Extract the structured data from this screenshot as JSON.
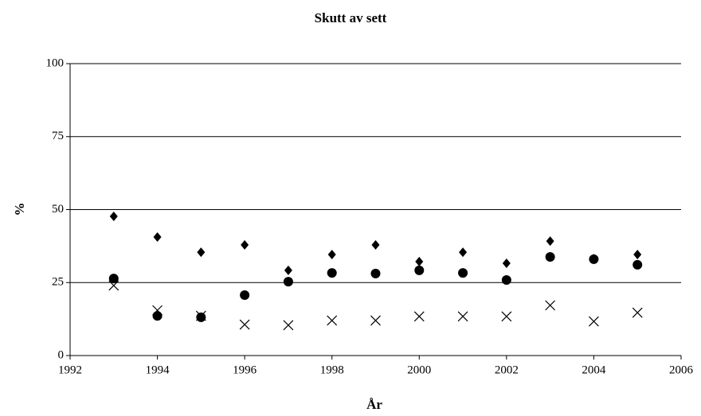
{
  "chart_data": {
    "type": "scatter",
    "title": "Skutt av sett",
    "x_label": "År",
    "y_label": "%",
    "x": [
      1993,
      1994,
      1995,
      1996,
      1997,
      1998,
      1999,
      2000,
      2001,
      2002,
      2003,
      2004,
      2005
    ],
    "series": [
      {
        "color": "#000000",
        "marker": "diamond",
        "values": [
          47.7,
          40.6,
          35.4,
          37.9,
          29.2,
          34.6,
          37.9,
          32.2,
          35.4,
          31.6,
          39.2,
          33.2,
          34.6
        ]
      },
      {
        "color": "#000000",
        "marker": "circle",
        "values": [
          26.4,
          13.6,
          13.1,
          20.7,
          25.3,
          28.3,
          28.1,
          29.2,
          28.3,
          25.9,
          33.8,
          33.0,
          31.1
        ]
      },
      {
        "color": "#000000",
        "marker": "cross",
        "values": [
          24.0,
          15.5,
          13.6,
          10.6,
          10.4,
          12.0,
          12.0,
          13.4,
          13.4,
          13.4,
          17.2,
          11.7,
          14.7
        ]
      }
    ],
    "xlim": [
      1992,
      2006
    ],
    "xticks": [
      1992,
      1994,
      1996,
      1998,
      2000,
      2002,
      2004,
      2006
    ],
    "ylim": [
      0,
      100
    ],
    "yticks": [
      0,
      25,
      50,
      75,
      100
    ],
    "grid": true
  }
}
